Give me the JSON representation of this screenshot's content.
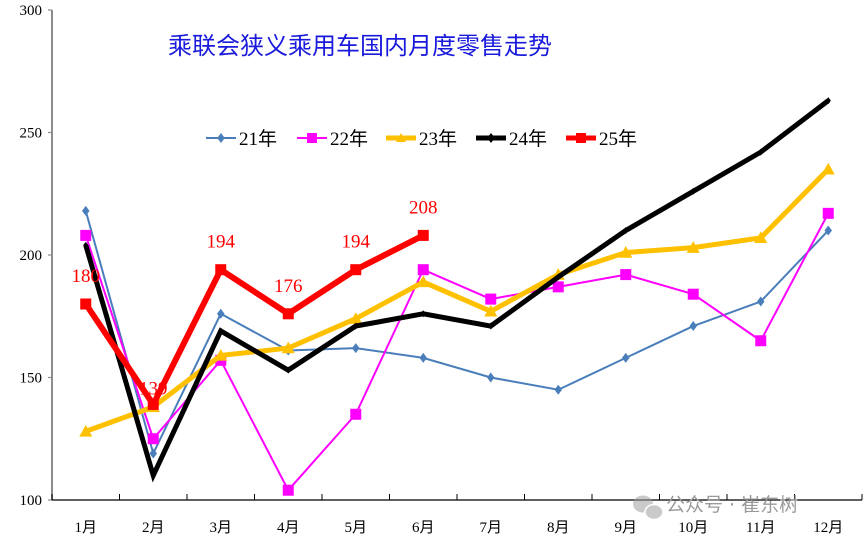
{
  "chart_data": {
    "type": "line",
    "title": "乘联会狭义乘用车国内月度零售走势",
    "xlabel": "",
    "ylabel": "",
    "ylim": [
      100,
      300
    ],
    "yticks": [
      100,
      150,
      200,
      250,
      300
    ],
    "grid": false,
    "legend_position": "top-center",
    "categories": [
      "1月",
      "2月",
      "3月",
      "4月",
      "5月",
      "6月",
      "7月",
      "8月",
      "9月",
      "10月",
      "11月",
      "12月"
    ],
    "series": [
      {
        "name": "21年",
        "color": "#4a7ebb",
        "marker": "diamond",
        "width": 2,
        "values": [
          218,
          119,
          176,
          161,
          162,
          158,
          150,
          145,
          158,
          171,
          181,
          210
        ]
      },
      {
        "name": "22年",
        "color": "#ff00ff",
        "marker": "square",
        "width": 2,
        "values": [
          208,
          125,
          157,
          104,
          135,
          194,
          182,
          187,
          192,
          184,
          165,
          217
        ]
      },
      {
        "name": "23年",
        "color": "#ffc000",
        "marker": "triangle",
        "width": 5,
        "values": [
          128,
          138,
          159,
          162,
          174,
          189,
          177,
          192,
          201,
          203,
          207,
          235
        ]
      },
      {
        "name": "24年",
        "color": "#000000",
        "marker": "diamond",
        "width": 5,
        "values": [
          204,
          110,
          169,
          153,
          171,
          176,
          171,
          191,
          210,
          226,
          242,
          263
        ]
      },
      {
        "name": "25年",
        "color": "#ff0000",
        "marker": "square",
        "width": 6,
        "values": [
          180,
          139,
          194,
          176,
          194,
          208
        ],
        "data_labels": [
          "180",
          "139",
          "194",
          "176",
          "194",
          "208"
        ]
      }
    ],
    "annotations": [
      "公众号 · 崔东树"
    ]
  },
  "watermark": "公众号 · 崔东树"
}
